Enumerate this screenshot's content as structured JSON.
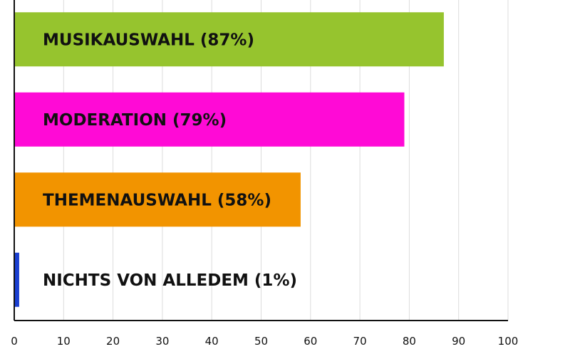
{
  "chart_data": {
    "type": "bar",
    "orientation": "horizontal",
    "title": "",
    "xlabel": "",
    "ylabel": "",
    "xlim": [
      0,
      100
    ],
    "grid": true,
    "legend": "none",
    "xticks": [
      "0",
      "10",
      "20",
      "30",
      "40",
      "50",
      "60",
      "70",
      "80",
      "90",
      "100"
    ],
    "categories": [
      "MUSIKAUSWAHL (87%)",
      "MODERATION (79%)",
      "THEMENAUSWAHL (58%)",
      "NICHTS VON ALLEDEM (1%)"
    ],
    "values": [
      87,
      79,
      58,
      1
    ],
    "colors": [
      "#96c42e",
      "#ff0ad6",
      "#f29400",
      "#1a3fd0"
    ]
  }
}
